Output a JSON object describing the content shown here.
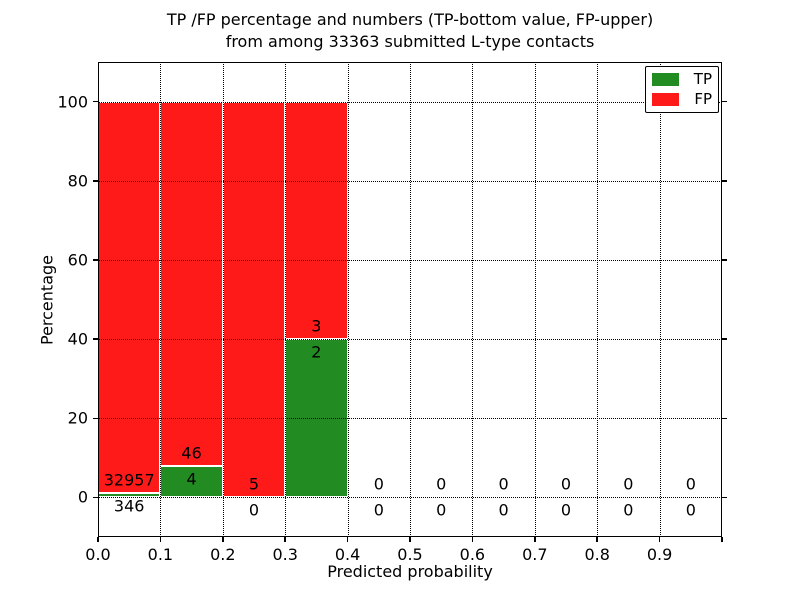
{
  "title": {
    "line1": "TP /FP percentage and numbers (TP-bottom value, FP-upper)",
    "line2": "from among 33363 submitted L-type contacts"
  },
  "axes": {
    "xlabel": "Predicted probability",
    "ylabel": "Percentage",
    "x_tick_values": [
      0.0,
      0.1,
      0.2,
      0.3,
      0.4,
      0.5,
      0.6,
      0.7,
      0.8,
      0.9
    ],
    "x_tick_labels": [
      "0.0",
      "0.1",
      "0.2",
      "0.3",
      "0.4",
      "0.5",
      "0.6",
      "0.7",
      "0.8",
      "0.9"
    ],
    "y_tick_values": [
      0,
      20,
      40,
      60,
      80,
      100
    ],
    "y_tick_labels": [
      "0",
      "20",
      "40",
      "60",
      "80",
      "100"
    ]
  },
  "legend": {
    "items": [
      {
        "label": "TP",
        "color": "#228b22"
      },
      {
        "label": "FP",
        "color": "#ff1a1a"
      }
    ]
  },
  "chart_data": {
    "type": "bar",
    "stacked": true,
    "title": "TP /FP percentage and numbers (TP-bottom value, FP-upper) from among 33363 submitted L-type contacts",
    "xlabel": "Predicted probability",
    "ylabel": "Percentage",
    "xlim": [
      0.0,
      1.0
    ],
    "ylim": [
      -10,
      110
    ],
    "grid": "dotted, both axes, drawn above bars",
    "legend_position": "upper right",
    "total_contacts": 33363,
    "bin_width": 0.1,
    "bin_starts": [
      0.0,
      0.1,
      0.2,
      0.3,
      0.4,
      0.5,
      0.6,
      0.7,
      0.8,
      0.9
    ],
    "series": [
      {
        "name": "TP",
        "color": "#228b22",
        "counts": [
          346,
          4,
          0,
          2,
          0,
          0,
          0,
          0,
          0,
          0
        ],
        "percent": [
          1.04,
          8,
          0,
          40,
          0,
          0,
          0,
          0,
          0,
          0
        ]
      },
      {
        "name": "FP",
        "color": "#ff1a1a",
        "counts": [
          32957,
          46,
          5,
          3,
          0,
          0,
          0,
          0,
          0,
          0
        ],
        "percent": [
          98.96,
          92,
          100,
          60,
          0,
          0,
          0,
          0,
          0,
          0
        ]
      }
    ],
    "annotation_note": "TP count shown below green bar top (bottom value), FP count shown above green bar top (upper value)"
  }
}
